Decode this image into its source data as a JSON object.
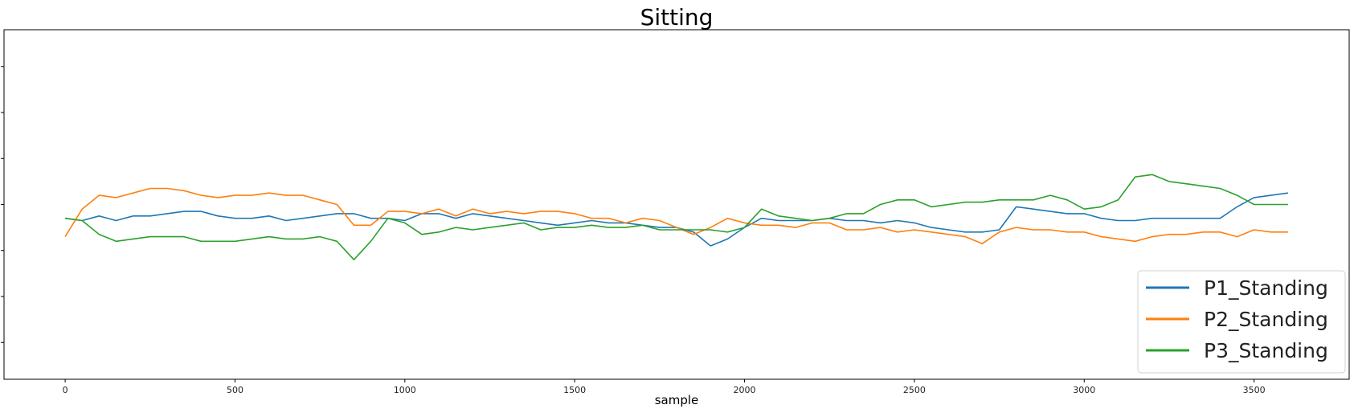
{
  "chart_data": {
    "type": "line",
    "title": "Sitting",
    "xlabel": "sample",
    "ylabel": "",
    "xlim": [
      -180,
      3780
    ],
    "ylim": [
      -3.8,
      3.8
    ],
    "xticks": [
      0,
      500,
      1000,
      1500,
      2000,
      2500,
      3000,
      3500
    ],
    "yticks": [
      -3,
      -2,
      -1,
      0,
      1,
      2,
      3
    ],
    "grid": false,
    "legend": {
      "placement": "bottom-right"
    },
    "x": [
      0,
      50,
      100,
      150,
      200,
      250,
      300,
      350,
      400,
      450,
      500,
      550,
      600,
      650,
      700,
      750,
      800,
      850,
      900,
      950,
      1000,
      1050,
      1100,
      1150,
      1200,
      1250,
      1300,
      1350,
      1400,
      1450,
      1500,
      1550,
      1600,
      1650,
      1700,
      1750,
      1800,
      1850,
      1900,
      1950,
      2000,
      2050,
      2100,
      2150,
      2200,
      2250,
      2300,
      2350,
      2400,
      2450,
      2500,
      2550,
      2600,
      2650,
      2700,
      2750,
      2800,
      2850,
      2900,
      2950,
      3000,
      3050,
      3100,
      3150,
      3200,
      3250,
      3300,
      3350,
      3400,
      3450,
      3500,
      3550,
      3600
    ],
    "series": [
      {
        "name": "P1_Standing",
        "color": "#1f77b4",
        "values": [
          -0.3,
          -0.35,
          -0.25,
          -0.35,
          -0.25,
          -0.25,
          -0.2,
          -0.15,
          -0.15,
          -0.25,
          -0.3,
          -0.3,
          -0.25,
          -0.35,
          -0.3,
          -0.25,
          -0.2,
          -0.2,
          -0.3,
          -0.3,
          -0.35,
          -0.2,
          -0.2,
          -0.3,
          -0.2,
          -0.25,
          -0.3,
          -0.35,
          -0.4,
          -0.45,
          -0.4,
          -0.35,
          -0.4,
          -0.4,
          -0.45,
          -0.5,
          -0.5,
          -0.6,
          -0.9,
          -0.75,
          -0.5,
          -0.3,
          -0.35,
          -0.35,
          -0.35,
          -0.3,
          -0.35,
          -0.35,
          -0.4,
          -0.35,
          -0.4,
          -0.5,
          -0.55,
          -0.6,
          -0.6,
          -0.55,
          -0.05,
          -0.1,
          -0.15,
          -0.2,
          -0.2,
          -0.3,
          -0.35,
          -0.35,
          -0.3,
          -0.3,
          -0.3,
          -0.3,
          -0.3,
          -0.05,
          0.15,
          0.2,
          0.25
        ]
      },
      {
        "name": "P2_Standing",
        "color": "#ff7f0e",
        "values": [
          -0.7,
          -0.1,
          0.2,
          0.15,
          0.25,
          0.35,
          0.35,
          0.3,
          0.2,
          0.15,
          0.2,
          0.2,
          0.25,
          0.2,
          0.2,
          0.1,
          0.0,
          -0.45,
          -0.45,
          -0.15,
          -0.15,
          -0.2,
          -0.1,
          -0.25,
          -0.1,
          -0.2,
          -0.15,
          -0.2,
          -0.15,
          -0.15,
          -0.2,
          -0.3,
          -0.3,
          -0.4,
          -0.3,
          -0.35,
          -0.5,
          -0.65,
          -0.5,
          -0.3,
          -0.4,
          -0.45,
          -0.45,
          -0.5,
          -0.4,
          -0.4,
          -0.55,
          -0.55,
          -0.5,
          -0.6,
          -0.55,
          -0.6,
          -0.65,
          -0.7,
          -0.85,
          -0.6,
          -0.5,
          -0.55,
          -0.55,
          -0.6,
          -0.6,
          -0.7,
          -0.75,
          -0.8,
          -0.7,
          -0.65,
          -0.65,
          -0.6,
          -0.6,
          -0.7,
          -0.55,
          -0.6,
          -0.6
        ]
      },
      {
        "name": "P3_Standing",
        "color": "#2ca02c",
        "values": [
          -0.3,
          -0.35,
          -0.65,
          -0.8,
          -0.75,
          -0.7,
          -0.7,
          -0.7,
          -0.8,
          -0.8,
          -0.8,
          -0.75,
          -0.7,
          -0.75,
          -0.75,
          -0.7,
          -0.8,
          -1.2,
          -0.8,
          -0.3,
          -0.4,
          -0.65,
          -0.6,
          -0.5,
          -0.55,
          -0.5,
          -0.45,
          -0.4,
          -0.55,
          -0.5,
          -0.5,
          -0.45,
          -0.5,
          -0.5,
          -0.45,
          -0.55,
          -0.55,
          -0.55,
          -0.55,
          -0.6,
          -0.5,
          -0.1,
          -0.25,
          -0.3,
          -0.35,
          -0.3,
          -0.2,
          -0.2,
          0.0,
          0.1,
          0.1,
          -0.05,
          0.0,
          0.05,
          0.05,
          0.1,
          0.1,
          0.1,
          0.2,
          0.1,
          -0.1,
          -0.05,
          0.1,
          0.6,
          0.65,
          0.5,
          0.45,
          0.4,
          0.35,
          0.2,
          0.0,
          0.0,
          0.0
        ]
      }
    ]
  }
}
